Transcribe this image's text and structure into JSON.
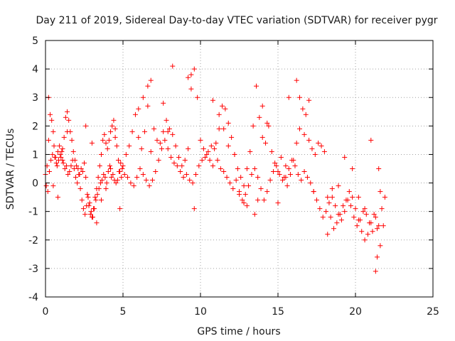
{
  "chart_data": {
    "type": "scatter",
    "title": "Day 211 of 2019, Sidereal Day-to-day VTEC variation (SDTVAR) for receiver pygr",
    "xlabel": "GPS time / hours",
    "ylabel": "SDTVAR / TECUs",
    "xlim": [
      0,
      25
    ],
    "ylim": [
      -4,
      5
    ],
    "xticks": [
      "0",
      "5",
      "10",
      "15",
      "20",
      "25"
    ],
    "yticks": [
      "-4",
      "-3",
      "-2",
      "-1",
      "0",
      "1",
      "2",
      "3",
      "4",
      "5"
    ],
    "grid": true,
    "marker": "plus",
    "color": "#ff0000",
    "series": [
      {
        "name": "SDTVAR",
        "x": [
          0.0,
          0.1,
          0.2,
          0.3,
          0.4,
          0.5,
          0.6,
          0.7,
          0.8,
          0.9,
          1.0,
          1.1,
          1.2,
          1.3,
          1.4,
          1.5,
          1.6,
          1.7,
          1.8,
          1.9,
          2.0,
          2.1,
          2.2,
          2.3,
          2.4,
          2.5,
          2.6,
          2.7,
          2.8,
          2.9,
          3.0,
          3.1,
          3.2,
          3.3,
          3.4,
          3.5,
          3.6,
          3.7,
          3.8,
          3.9,
          4.0,
          4.1,
          4.2,
          4.3,
          4.4,
          4.5,
          4.6,
          4.7,
          4.8,
          4.9,
          5.0,
          5.2,
          5.4,
          5.6,
          5.8,
          6.0,
          6.2,
          6.4,
          6.6,
          6.8,
          7.0,
          7.2,
          7.4,
          7.6,
          7.8,
          8.0,
          8.2,
          8.4,
          8.6,
          8.8,
          9.0,
          9.2,
          9.4,
          9.6,
          9.8,
          10.0,
          10.2,
          10.4,
          10.6,
          10.8,
          11.0,
          11.2,
          11.4,
          11.6,
          11.8,
          12.0,
          12.2,
          12.4,
          12.6,
          12.8,
          13.0,
          13.2,
          13.4,
          13.6,
          13.8,
          14.0,
          14.2,
          14.4,
          14.6,
          14.8,
          15.0,
          15.2,
          15.4,
          15.6,
          15.8,
          16.0,
          16.2,
          16.4,
          16.6,
          16.8,
          17.0,
          17.2,
          17.4,
          17.6,
          17.8,
          18.0,
          18.2,
          18.4,
          18.6,
          18.8,
          19.0,
          19.2,
          19.4,
          19.6,
          19.8,
          20.0,
          20.2,
          20.4,
          20.6,
          20.8,
          21.0,
          21.2,
          21.4,
          21.6,
          21.8,
          0.05,
          0.15,
          0.25,
          0.35,
          0.45,
          0.55,
          0.65,
          0.75,
          0.85,
          0.95,
          1.05,
          1.15,
          1.25,
          1.35,
          1.45,
          1.55,
          1.65,
          1.75,
          1.85,
          1.95,
          2.05,
          2.15,
          2.25,
          2.35,
          2.45,
          2.55,
          2.65,
          2.75,
          2.85,
          2.95,
          3.05,
          3.15,
          3.25,
          3.35,
          3.45,
          3.55,
          3.65,
          3.75,
          3.85,
          3.95,
          4.05,
          4.15,
          4.25,
          4.35,
          4.45,
          4.55,
          4.65,
          4.75,
          4.85,
          4.95,
          5.1,
          5.3,
          5.5,
          5.7,
          5.9,
          6.1,
          6.3,
          6.5,
          6.7,
          6.9,
          7.1,
          7.3,
          7.5,
          7.7,
          7.9,
          8.1,
          8.3,
          8.5,
          8.7,
          8.9,
          9.1,
          9.3,
          9.5,
          9.7,
          9.9,
          10.1,
          10.3,
          10.5,
          10.7,
          10.9,
          11.1,
          11.3,
          11.5,
          11.7,
          11.9,
          12.1,
          12.3,
          12.5,
          12.7,
          12.9,
          13.1,
          13.3,
          13.5,
          13.7,
          13.9,
          14.1,
          14.3,
          14.5,
          14.7,
          14.9,
          15.1,
          15.3,
          15.5,
          15.7,
          15.9,
          16.1,
          16.3,
          16.5,
          16.7,
          16.9,
          17.1,
          17.3,
          17.5,
          17.7,
          17.9,
          18.1,
          18.3,
          18.5,
          18.7,
          18.9,
          19.1,
          19.3,
          19.5,
          19.7,
          19.9,
          20.1,
          20.3,
          20.5,
          20.7,
          20.9,
          21.1,
          21.3,
          21.5,
          21.7,
          21.9,
          0.2,
          0.5,
          0.8,
          1.1,
          1.4,
          2.6,
          3.0,
          3.3,
          3.6,
          3.9,
          4.2,
          4.5,
          4.8,
          6.0,
          6.3,
          6.6,
          6.8,
          7.6,
          7.9,
          8.2,
          9.2,
          9.4,
          9.6,
          10.8,
          11.2,
          11.5,
          11.8,
          12.2,
          12.5,
          12.8,
          13.0,
          13.5,
          13.7,
          14.0,
          14.3,
          15.0,
          15.5,
          15.7,
          16.2,
          16.4,
          16.7,
          17.0,
          17.3,
          18.2,
          18.5,
          18.9,
          19.3,
          19.8,
          20.2,
          20.6,
          21.0,
          21.3,
          21.4,
          21.5,
          21.6
        ],
        "y": [
          0.3,
          0.6,
          1.5,
          2.4,
          2.2,
          1.8,
          0.9,
          0.7,
          1.1,
          1.3,
          0.9,
          1.2,
          1.6,
          2.3,
          2.5,
          2.2,
          1.8,
          1.5,
          1.1,
          0.8,
          0.6,
          0.5,
          0.3,
          0.5,
          0.4,
          0.7,
          0.2,
          -0.4,
          -0.8,
          -1.1,
          -1.2,
          -0.9,
          -0.5,
          -0.2,
          0.2,
          0.6,
          1.0,
          1.5,
          1.7,
          1.4,
          1.2,
          1.5,
          1.8,
          2.0,
          2.2,
          1.9,
          1.3,
          0.8,
          0.4,
          0.2,
          0.6,
          1.0,
          1.3,
          1.8,
          2.4,
          1.6,
          1.2,
          1.8,
          2.7,
          3.6,
          1.9,
          1.5,
          1.4,
          1.8,
          2.2,
          1.9,
          1.7,
          1.3,
          0.9,
          0.6,
          0.8,
          1.2,
          3.8,
          4.0,
          3.0,
          1.5,
          1.2,
          1.0,
          0.8,
          0.6,
          1.4,
          1.9,
          2.7,
          2.6,
          2.1,
          1.6,
          1.0,
          0.5,
          0.2,
          -0.1,
          0.5,
          1.1,
          2.0,
          3.4,
          2.3,
          1.6,
          1.4,
          2.0,
          1.1,
          0.7,
          0.4,
          0.9,
          0.2,
          -0.1,
          0.3,
          0.8,
          1.4,
          1.9,
          2.6,
          2.4,
          1.5,
          1.2,
          1.0,
          1.4,
          1.3,
          1.1,
          -0.5,
          -1.2,
          -1.6,
          -1.4,
          -1.1,
          -0.8,
          -0.6,
          -0.3,
          -0.5,
          -0.9,
          -1.3,
          -1.7,
          -2.0,
          -1.8,
          -1.4,
          -1.1,
          -1.6,
          -2.2,
          -1.5,
          -0.1,
          -0.3,
          0.4,
          0.8,
          1.0,
          1.3,
          0.9,
          0.6,
          0.8,
          1.0,
          1.1,
          0.7,
          0.5,
          0.6,
          0.3,
          0.4,
          0.6,
          0.8,
          0.5,
          0.2,
          0.0,
          0.3,
          -0.2,
          -0.6,
          -0.9,
          -1.1,
          -0.8,
          -0.5,
          -0.7,
          -1.0,
          -1.2,
          -0.9,
          -0.6,
          -0.4,
          -0.2,
          0.0,
          0.1,
          0.3,
          0.2,
          0.0,
          0.4,
          0.6,
          0.2,
          0.3,
          0.1,
          0.0,
          0.1,
          0.4,
          0.7,
          0.5,
          0.3,
          0.2,
          0.0,
          -0.1,
          0.2,
          0.5,
          0.3,
          0.1,
          -0.1,
          0.1,
          0.4,
          0.8,
          1.2,
          1.5,
          1.2,
          0.9,
          0.7,
          0.6,
          0.4,
          0.2,
          0.3,
          0.1,
          0.0,
          0.3,
          0.6,
          0.8,
          0.9,
          1.1,
          1.3,
          1.2,
          0.8,
          0.5,
          0.4,
          0.2,
          0.0,
          -0.2,
          0.1,
          -0.3,
          -0.6,
          -0.4,
          -0.1,
          0.3,
          0.5,
          0.2,
          -0.2,
          -0.6,
          -0.3,
          0.1,
          0.4,
          0.6,
          0.3,
          0.1,
          0.2,
          0.5,
          0.8,
          0.6,
          0.3,
          0.1,
          0.4,
          0.2,
          0.0,
          -0.3,
          -0.6,
          -0.9,
          -1.2,
          -1.0,
          -0.7,
          -0.5,
          -0.8,
          -1.1,
          -1.3,
          -1.0,
          -0.6,
          -0.8,
          -1.2,
          -1.5,
          -1.3,
          -1.0,
          -1.1,
          -1.4,
          -1.7,
          -1.2,
          -1.5,
          -0.9,
          -0.5,
          3.0,
          -0.1,
          -0.5,
          0.8,
          1.8,
          2.0,
          1.4,
          -1.4,
          -0.6,
          -0.2,
          0.5,
          1.6,
          -0.9,
          2.6,
          3.0,
          3.4,
          1.1,
          2.8,
          1.8,
          4.1,
          3.7,
          3.3,
          -0.9,
          2.9,
          2.4,
          1.9,
          1.3,
          1.0,
          -0.4,
          -0.7,
          -0.8,
          -1.1,
          -0.6,
          2.7,
          2.1,
          -0.7,
          0.6,
          3.0,
          3.6,
          3.0,
          1.7,
          2.9,
          -0.3,
          -1.8,
          -0.2,
          -0.1,
          0.9,
          0.5,
          -0.5,
          -0.9,
          1.5,
          -3.1,
          -2.6,
          0.5,
          -0.3
        ]
      }
    ]
  }
}
